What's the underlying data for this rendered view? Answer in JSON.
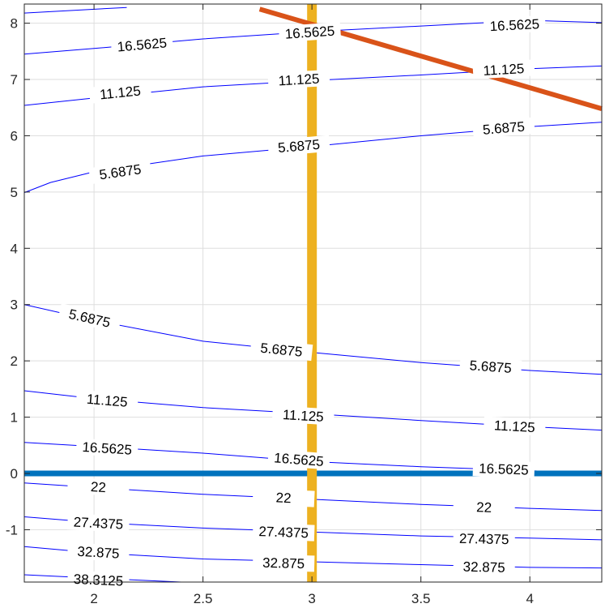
{
  "chart_data": {
    "type": "contour",
    "title": "",
    "xlabel": "",
    "ylabel": "",
    "xlim": [
      1.68,
      4.33
    ],
    "ylim": [
      -1.93,
      8.34
    ],
    "xticks": [
      {
        "value": 2,
        "label": "2"
      },
      {
        "value": 2.5,
        "label": "2.5"
      },
      {
        "value": 3,
        "label": "3"
      },
      {
        "value": 3.5,
        "label": "3.5"
      },
      {
        "value": 4,
        "label": "4"
      }
    ],
    "yticks": [
      {
        "value": -1,
        "label": "-1"
      },
      {
        "value": 0,
        "label": "0"
      },
      {
        "value": 1,
        "label": "1"
      },
      {
        "value": 2,
        "label": "2"
      },
      {
        "value": 3,
        "label": "3"
      },
      {
        "value": 4,
        "label": "4"
      },
      {
        "value": 5,
        "label": "5"
      },
      {
        "value": 6,
        "label": "6"
      },
      {
        "value": 7,
        "label": "7"
      },
      {
        "value": 8,
        "label": "8"
      }
    ],
    "grid": true,
    "contour_color": "#0000ff",
    "contours": [
      {
        "level": "5.6875",
        "points": [
          [
            1.68,
            4.99
          ],
          [
            1.8,
            5.17
          ],
          [
            2.0,
            5.36
          ],
          [
            2.5,
            5.64
          ],
          [
            3.0,
            5.81
          ],
          [
            3.5,
            6.0
          ],
          [
            4.0,
            6.16
          ],
          [
            4.33,
            6.24
          ]
        ],
        "labels": [
          [
            2.12,
            5.36
          ],
          [
            2.94,
            5.82
          ],
          [
            3.88,
            6.14
          ]
        ]
      },
      {
        "level": "11.125",
        "points": [
          [
            1.68,
            6.54
          ],
          [
            2.0,
            6.67
          ],
          [
            2.5,
            6.87
          ],
          [
            3.0,
            6.98
          ],
          [
            3.5,
            7.08
          ],
          [
            4.0,
            7.19
          ],
          [
            4.33,
            7.24
          ]
        ],
        "labels": [
          [
            2.12,
            6.77
          ],
          [
            2.94,
            7.0
          ],
          [
            3.88,
            7.18
          ]
        ]
      },
      {
        "level": "16.5625",
        "points": [
          [
            1.68,
            7.45
          ],
          [
            2.0,
            7.55
          ],
          [
            2.5,
            7.72
          ],
          [
            3.0,
            7.85
          ],
          [
            3.5,
            7.95
          ],
          [
            4.0,
            8.05
          ],
          [
            4.33,
            8.01
          ]
        ],
        "labels": [
          [
            2.22,
            7.62
          ],
          [
            2.99,
            7.84
          ],
          [
            3.93,
            7.97
          ]
        ]
      },
      {
        "level": "",
        "points": [
          [
            1.68,
            8.18
          ],
          [
            2.15,
            8.28
          ]
        ],
        "labels": []
      },
      {
        "level": "5.6875",
        "points": [
          [
            1.68,
            3.0
          ],
          [
            2.0,
            2.72
          ],
          [
            2.5,
            2.35
          ],
          [
            3.0,
            2.15
          ],
          [
            3.5,
            1.97
          ],
          [
            4.0,
            1.83
          ],
          [
            4.33,
            1.76
          ]
        ],
        "labels": [
          [
            1.98,
            2.76
          ],
          [
            2.86,
            2.2
          ],
          [
            3.82,
            1.9
          ]
        ]
      },
      {
        "level": "11.125",
        "points": [
          [
            1.68,
            1.47
          ],
          [
            2.0,
            1.33
          ],
          [
            2.5,
            1.17
          ],
          [
            3.0,
            1.06
          ],
          [
            3.5,
            0.94
          ],
          [
            4.0,
            0.83
          ],
          [
            4.33,
            0.77
          ]
        ],
        "labels": [
          [
            2.06,
            1.3
          ],
          [
            2.96,
            1.03
          ],
          [
            3.93,
            0.84
          ]
        ]
      },
      {
        "level": "16.5625",
        "points": [
          [
            1.68,
            0.55
          ],
          [
            2.0,
            0.48
          ],
          [
            2.5,
            0.36
          ],
          [
            3.0,
            0.21
          ],
          [
            3.5,
            0.12
          ],
          [
            4.0,
            0.05
          ],
          [
            4.33,
            -0.02
          ]
        ],
        "labels": [
          [
            2.06,
            0.45
          ],
          [
            2.94,
            0.25
          ],
          [
            3.88,
            0.08
          ]
        ]
      },
      {
        "level": "22",
        "points": [
          [
            1.68,
            -0.17
          ],
          [
            2.0,
            -0.25
          ],
          [
            2.5,
            -0.37
          ],
          [
            3.0,
            -0.46
          ],
          [
            3.5,
            -0.55
          ],
          [
            4.0,
            -0.62
          ],
          [
            4.33,
            -0.66
          ]
        ],
        "labels": [
          [
            2.02,
            -0.24
          ],
          [
            2.87,
            -0.43
          ],
          [
            3.79,
            -0.6
          ]
        ]
      },
      {
        "level": "27.4375",
        "points": [
          [
            1.68,
            -0.77
          ],
          [
            2.0,
            -0.87
          ],
          [
            2.5,
            -0.97
          ],
          [
            3.0,
            -1.04
          ],
          [
            3.5,
            -1.11
          ],
          [
            4.0,
            -1.15
          ],
          [
            4.33,
            -1.18
          ]
        ],
        "labels": [
          [
            2.02,
            -0.88
          ],
          [
            2.87,
            -1.04
          ],
          [
            3.79,
            -1.16
          ]
        ]
      },
      {
        "level": "32.875",
        "points": [
          [
            1.68,
            -1.3
          ],
          [
            2.0,
            -1.41
          ],
          [
            2.5,
            -1.52
          ],
          [
            3.0,
            -1.57
          ],
          [
            3.5,
            -1.62
          ],
          [
            4.0,
            -1.67
          ],
          [
            4.33,
            -1.68
          ]
        ],
        "labels": [
          [
            2.02,
            -1.4
          ],
          [
            2.87,
            -1.59
          ],
          [
            3.79,
            -1.66
          ]
        ]
      },
      {
        "level": "38.3125",
        "points": [
          [
            1.68,
            -1.8
          ],
          [
            2.0,
            -1.86
          ],
          [
            2.4,
            -1.93
          ]
        ],
        "labels": [
          [
            2.02,
            -1.89
          ]
        ]
      }
    ],
    "lines": [
      {
        "points": [
          [
            1.68,
            0.0
          ],
          [
            4.33,
            0.0
          ]
        ],
        "color": "#0072bd",
        "width": 7
      },
      {
        "points": [
          [
            3.0,
            -1.93
          ],
          [
            3.0,
            8.34
          ]
        ],
        "color": "#edb120",
        "width": 12
      },
      {
        "points": [
          [
            2.76,
            8.25
          ],
          [
            4.33,
            6.48
          ]
        ],
        "color": "#d95319",
        "width": 6
      }
    ]
  }
}
